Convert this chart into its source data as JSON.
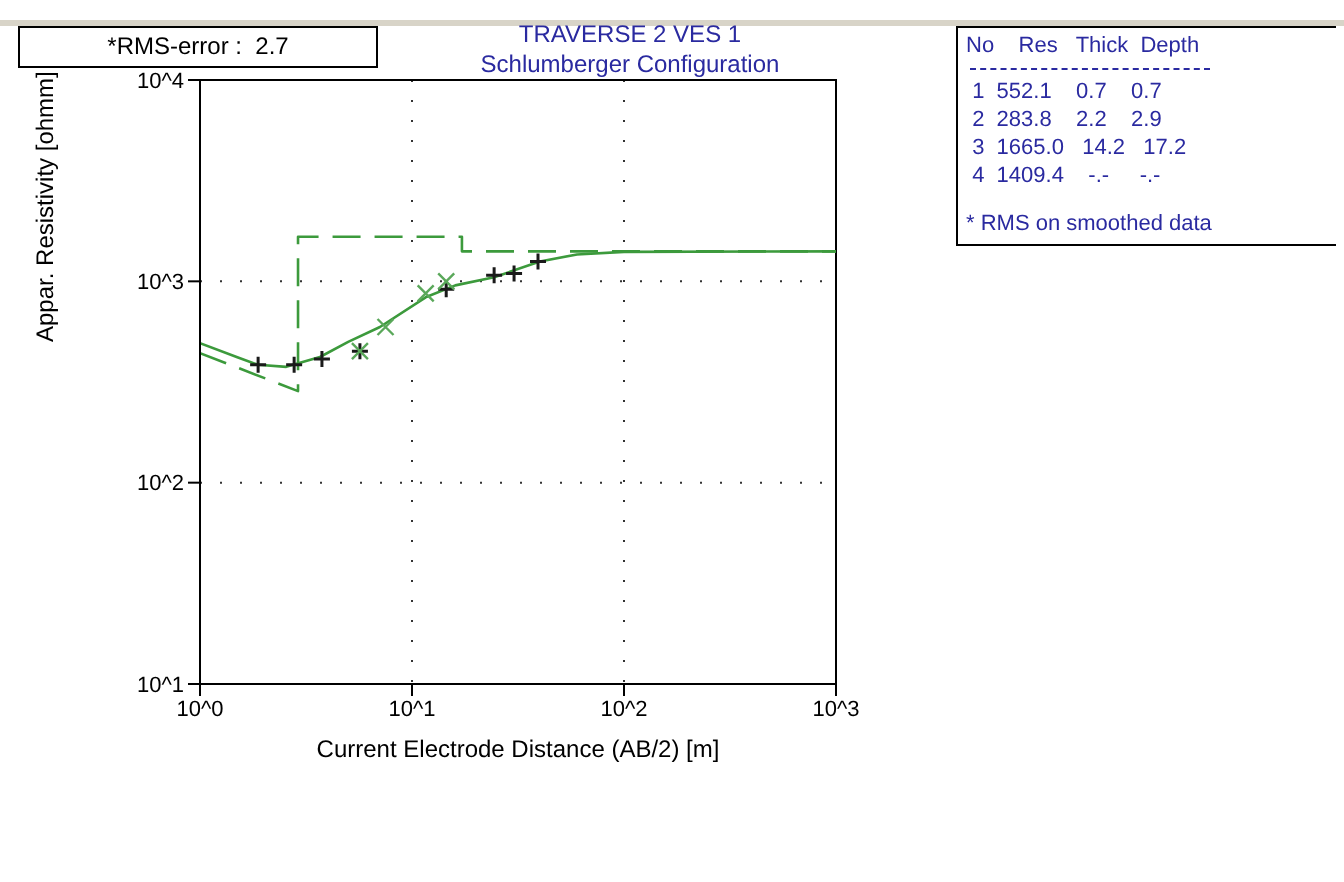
{
  "chart_data": {
    "type": "line",
    "title": "TRAVERSE 2 VES 1",
    "subtitle": "Schlumberger Configuration",
    "xlabel": "Current Electrode Distance (AB/2) [m]",
    "ylabel": "Appar. Resistivity [ohmm]",
    "log": "xy",
    "grid": true,
    "xlim": [
      1,
      1000
    ],
    "ylim": [
      10,
      10000
    ],
    "xticks": [
      {
        "value": 1,
        "label": "10^0"
      },
      {
        "value": 10,
        "label": "10^1"
      },
      {
        "value": 100,
        "label": "10^2"
      },
      {
        "value": 1000,
        "label": "10^3"
      }
    ],
    "yticks": [
      {
        "value": 10,
        "label": "10^1"
      },
      {
        "value": 100,
        "label": "10^2"
      },
      {
        "value": 1000,
        "label": "10^3"
      },
      {
        "value": 10000,
        "label": "10^4"
      }
    ],
    "series": [
      {
        "line_style": "dashed",
        "marker": "none",
        "color": "#3c9a3c",
        "x": [
          1,
          2.9,
          2.9,
          17.2,
          17.2,
          1000
        ],
        "values": [
          440,
          285,
          1665,
          1665,
          1409.4,
          1409.4
        ]
      },
      {
        "line_style": "solid",
        "marker": "none",
        "color": "#3c9a3c",
        "x": [
          1,
          1.5,
          1.88,
          2.55,
          3.68,
          5,
          7.06,
          11.6,
          16,
          24.4,
          40.1,
          60,
          100,
          1000
        ],
        "values": [
          493,
          420,
          385,
          376,
          421,
          500,
          593,
          833,
          955,
          1047,
          1256,
          1360,
          1400,
          1409.4
        ]
      },
      {
        "type": "scatter",
        "marker": "cross",
        "color": "#1a1a1a",
        "x": [
          1.88,
          2.78,
          3.76,
          5.68,
          14.5,
          24.4,
          30.3,
          39.3
        ],
        "values": [
          385,
          385,
          411,
          450,
          913,
          1071,
          1093,
          1256
        ]
      },
      {
        "type": "scatter",
        "marker": "cross",
        "color": "#5aa85a",
        "x": [
          5.68,
          7.5,
          11.6,
          14.5
        ],
        "values": [
          450,
          593,
          872,
          1000
        ]
      }
    ],
    "annotations": [
      "*RMS-error :  2.7",
      "No    Res   Thick  Depth",
      "1  552.1    0.7    0.7",
      "2  283.8    2.2    2.9",
      "3  1665.0   14.2   17.2",
      "4  1409.4    -.-     -.-",
      "* RMS on smoothed data"
    ]
  }
}
